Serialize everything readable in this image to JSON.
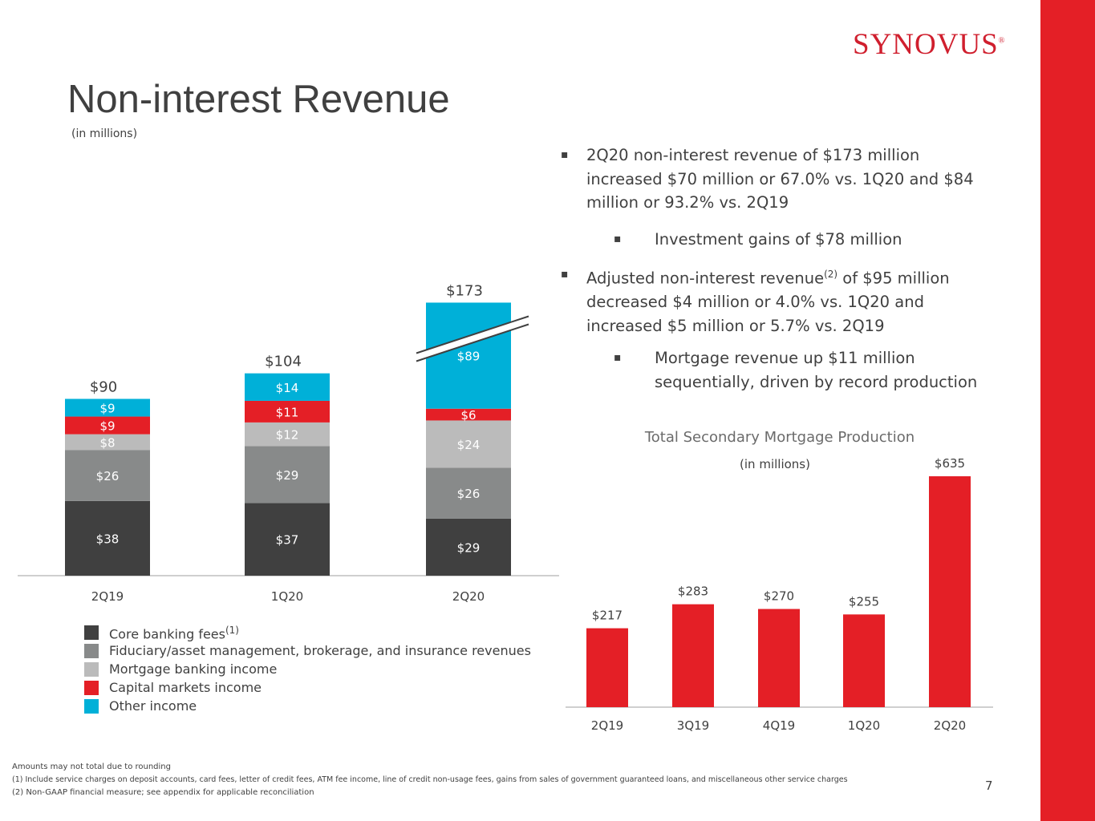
{
  "brand": {
    "name": "SYNOVUS",
    "reg": "®",
    "accent": "#e41f26"
  },
  "title": "Non-interest Revenue",
  "subtitle": "(in millions)",
  "bullets": [
    {
      "mark": "▪",
      "text": "2Q20 non-interest revenue of $173 million increased $70 million or 67.0% vs. 1Q20 and $84 million or 93.2% vs. 2Q19"
    },
    {
      "mark": "▪",
      "text": "Investment gains of $78 million"
    },
    {
      "mark": "▪",
      "text_before": "Adjusted non-interest revenue",
      "sup": "(2)",
      "text_after": " of $95 million decreased $4 million or 4.0% vs. 1Q20 and increased $5 million or 5.7% vs. 2Q19"
    },
    {
      "mark": "▪",
      "text": "Mortgage revenue up $11 million sequentially, driven by record production"
    }
  ],
  "legend": [
    {
      "label": "Core banking fees",
      "sup": "(1)",
      "color": "#404040"
    },
    {
      "label": "Fiduciary/asset management, brokerage, and insurance revenues",
      "sup": "",
      "color": "#888a8a"
    },
    {
      "label": "Mortgage banking income",
      "sup": "",
      "color": "#bbbbbb"
    },
    {
      "label": "Capital markets income",
      "sup": "",
      "color": "#e41f26"
    },
    {
      "label": "Other income",
      "sup": "",
      "color": "#00b0d8"
    }
  ],
  "chart_data": [
    {
      "type": "bar",
      "stacked": true,
      "title": "Non-interest Revenue",
      "unit": "(in millions)",
      "categories": [
        "2Q19",
        "1Q20",
        "2Q20"
      ],
      "series": [
        {
          "name": "Core banking fees",
          "color": "#404040",
          "values": [
            38,
            37,
            29
          ],
          "labels": [
            "$38",
            "$37",
            "$29"
          ]
        },
        {
          "name": "Fiduciary/asset management, brokerage, and insurance revenues",
          "color": "#888a8a",
          "values": [
            26,
            29,
            26
          ],
          "labels": [
            "$26",
            "$29",
            "$26"
          ]
        },
        {
          "name": "Mortgage banking income",
          "color": "#bbbbbb",
          "values": [
            8,
            12,
            24
          ],
          "labels": [
            "$8",
            "$12",
            "$24"
          ]
        },
        {
          "name": "Capital markets income",
          "color": "#e41f26",
          "values": [
            9,
            11,
            6
          ],
          "labels": [
            "$9",
            "$11",
            "$6"
          ]
        },
        {
          "name": "Other income",
          "color": "#00b0d8",
          "values": [
            9,
            14,
            89
          ],
          "labels": [
            "$9",
            "$14",
            "$89"
          ]
        }
      ],
      "totals": [
        90,
        104,
        173
      ],
      "total_labels": [
        "$90",
        "$104",
        "$173"
      ],
      "broken_axis_on": "2Q20",
      "legend_position": "bottom-left"
    },
    {
      "type": "bar",
      "title": "Total Secondary Mortgage Production",
      "unit": "(in millions)",
      "categories": [
        "2Q19",
        "3Q19",
        "4Q19",
        "1Q20",
        "2Q20"
      ],
      "values": [
        217,
        283,
        270,
        255,
        635
      ],
      "labels": [
        "$217",
        "$283",
        "$270",
        "$255",
        "$635"
      ],
      "color": "#e41f26"
    }
  ],
  "footnotes": [
    "Amounts may not total due to rounding",
    "(1) Include service charges on deposit accounts, card fees, letter of credit fees, ATM fee income, line of credit non-usage fees, gains from sales of government guaranteed loans, and miscellaneous other service charges",
    "(2) Non-GAAP financial measure; see appendix for applicable reconciliation"
  ],
  "page_number": "7"
}
